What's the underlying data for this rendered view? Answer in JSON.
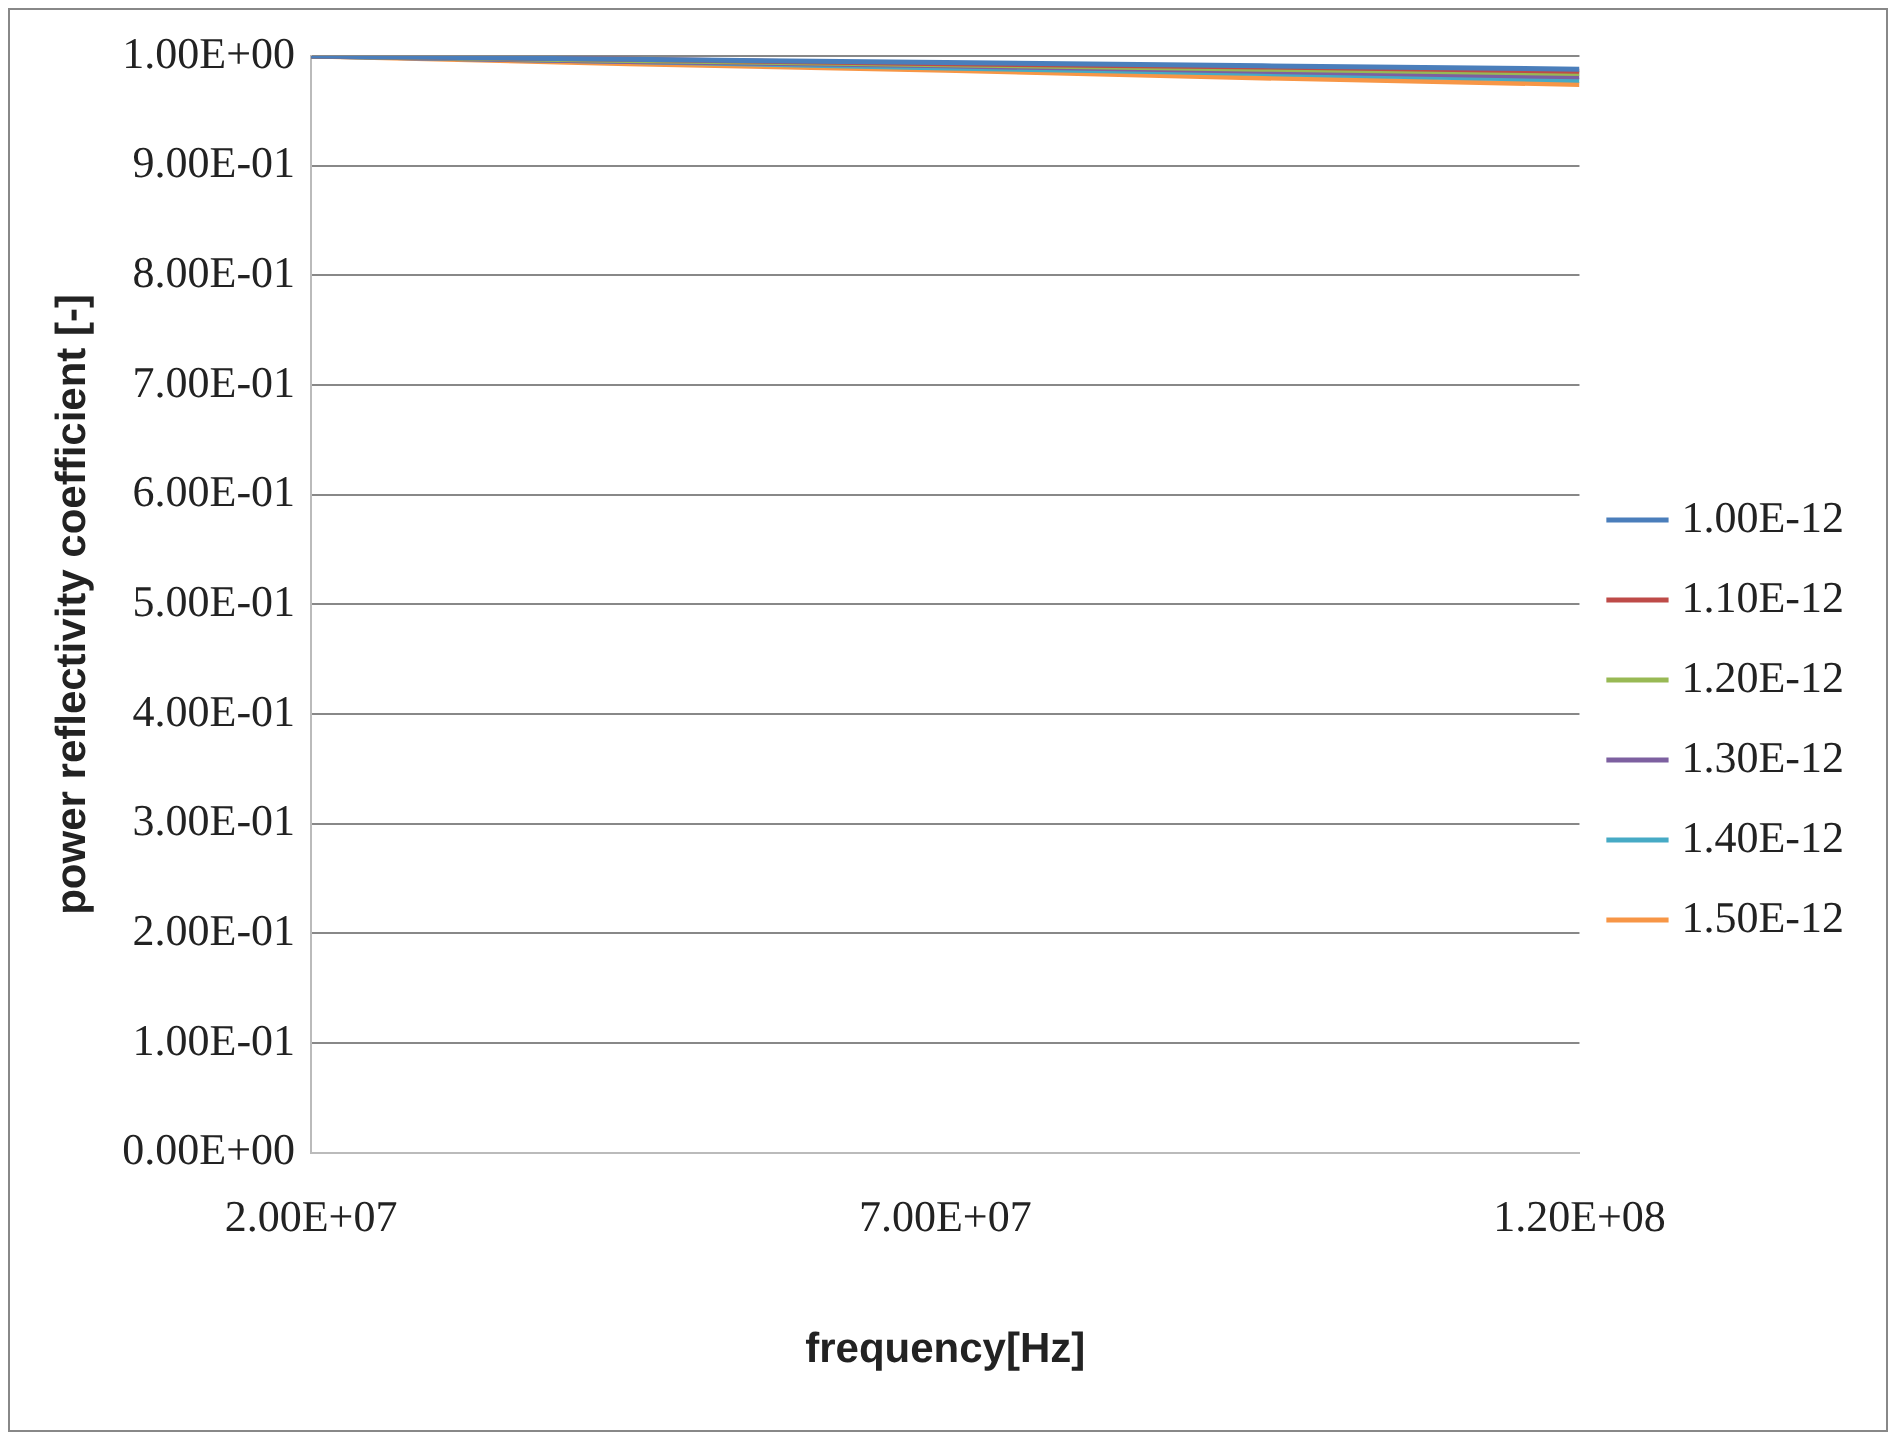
{
  "chart_data": {
    "type": "line",
    "xlabel": "frequency[Hz]",
    "ylabel": "power reflectivity coefficient [-]",
    "x": [
      20000000,
      45000000,
      70000000,
      95000000,
      120000000
    ],
    "series": [
      {
        "name": "1.00E-12",
        "color": "#4a7ebb",
        "values": [
          1.0,
          0.997,
          0.994,
          0.991,
          0.988
        ]
      },
      {
        "name": "1.10E-12",
        "color": "#be4b48",
        "values": [
          1.0,
          0.997,
          0.993,
          0.99,
          0.986
        ]
      },
      {
        "name": "1.20E-12",
        "color": "#98b954",
        "values": [
          1.0,
          0.996,
          0.992,
          0.988,
          0.984
        ]
      },
      {
        "name": "1.30E-12",
        "color": "#7d60a0",
        "values": [
          1.0,
          0.995,
          0.991,
          0.986,
          0.981
        ]
      },
      {
        "name": "1.40E-12",
        "color": "#46aac5",
        "values": [
          1.0,
          0.995,
          0.989,
          0.984,
          0.978
        ]
      },
      {
        "name": "1.50E-12",
        "color": "#f79646",
        "values": [
          1.0,
          0.993,
          0.987,
          0.98,
          0.974
        ]
      }
    ],
    "xlim": [
      20000000,
      120000000
    ],
    "xticks": [
      {
        "value": 20000000,
        "label": "2.00E+07"
      },
      {
        "value": 70000000,
        "label": "7.00E+07"
      },
      {
        "value": 120000000,
        "label": "1.20E+08"
      }
    ],
    "ylim": [
      0,
      1
    ],
    "yticks": [
      {
        "value": 0,
        "label": "0.00E+00"
      },
      {
        "value": 0.1,
        "label": "1.00E-01"
      },
      {
        "value": 0.2,
        "label": "2.00E-01"
      },
      {
        "value": 0.3,
        "label": "3.00E-01"
      },
      {
        "value": 0.4,
        "label": "4.00E-01"
      },
      {
        "value": 0.5,
        "label": "5.00E-01"
      },
      {
        "value": 0.6,
        "label": "6.00E-01"
      },
      {
        "value": 0.7,
        "label": "7.00E-01"
      },
      {
        "value": 0.8,
        "label": "8.00E-01"
      },
      {
        "value": 0.9,
        "label": "9.00E-01"
      },
      {
        "value": 1,
        "label": "1.00E+00"
      }
    ],
    "grid": "y",
    "legend": "right",
    "marker": "none",
    "line_style": "solid"
  }
}
